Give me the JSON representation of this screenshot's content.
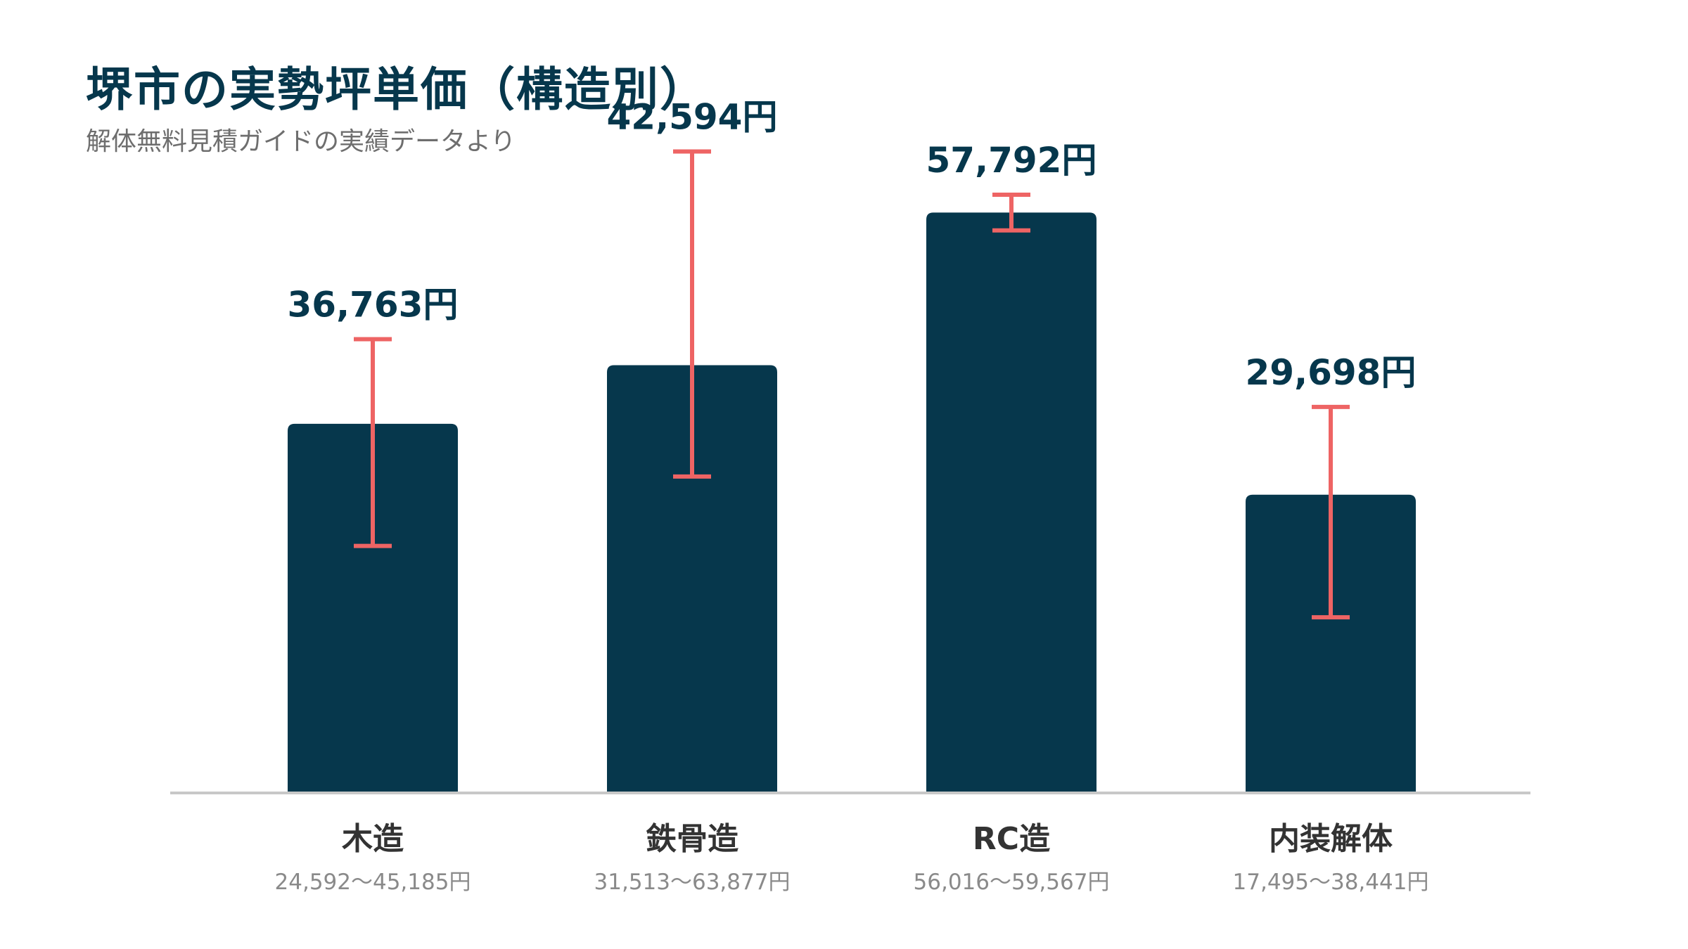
{
  "header": {
    "title": "堺市の実勢坪単価（構造別）",
    "subtitle": "解体無料見積ガイドの実績データより"
  },
  "colors": {
    "bar": "#06374c",
    "error_bar": "#ee6464",
    "axis": "#c8c8c8",
    "title": "#06374c"
  },
  "chart_data": {
    "type": "bar",
    "title": "堺市の実勢坪単価（構造別）",
    "subtitle": "解体無料見積ガイドの実績データより",
    "categories": [
      "木造",
      "鉄骨造",
      "RC造",
      "内装解体"
    ],
    "values": [
      36763,
      42594,
      57792,
      29698
    ],
    "value_labels": [
      "36,763円",
      "42,594円",
      "57,792円",
      "29,698円"
    ],
    "ranges": [
      [
        24592,
        45185
      ],
      [
        31513,
        63877
      ],
      [
        56016,
        59567
      ],
      [
        17495,
        38441
      ]
    ],
    "range_labels": [
      "24,592〜45,185円",
      "31,513〜63,877円",
      "56,016〜59,567円",
      "17,495〜38,441円"
    ],
    "xlabel": "",
    "ylabel": "",
    "ylim": [
      0,
      70000
    ],
    "grid": false,
    "error_bars": true
  }
}
